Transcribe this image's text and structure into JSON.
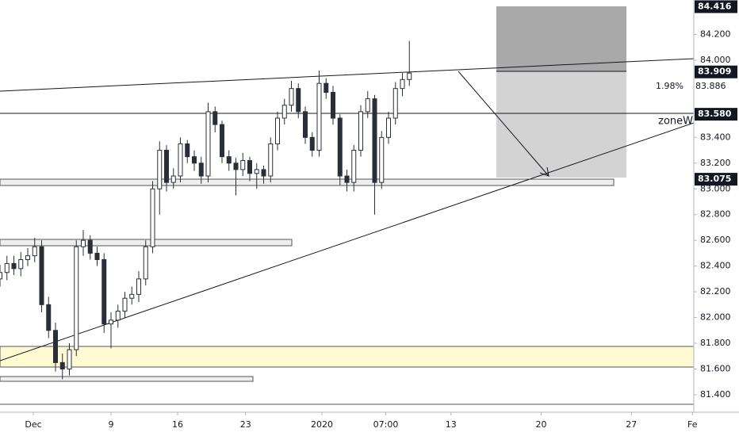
{
  "chart_data": {
    "type": "candlestick",
    "color": "#2a2e39",
    "x": [
      -2.4,
      -1.9,
      -1.4,
      -0.9,
      -0.4,
      0.1,
      0.6,
      1.1,
      1.6,
      2.1,
      2.6,
      3.1,
      3.6,
      4.1,
      4.6,
      5.1,
      5.6,
      6.1,
      6.6,
      7.1,
      7.6,
      8.1,
      8.6,
      9.1,
      9.6,
      10.1,
      10.6,
      11.1,
      11.6,
      12.1,
      12.6,
      13.1,
      13.6,
      14.1,
      14.6,
      15.1,
      15.6,
      16.1,
      16.6,
      17.1,
      17.6,
      18.1,
      18.6,
      19.1,
      19.6,
      20.1,
      20.6,
      21.1,
      21.6,
      22.1,
      22.6,
      23.1,
      23.6,
      24.1,
      24.6,
      25.1,
      25.6,
      26.1,
      26.6,
      27.1
    ],
    "open": [
      82.3,
      82.35,
      82.42,
      82.38,
      82.45,
      82.48,
      82.55,
      82.1,
      81.9,
      81.65,
      81.6,
      81.75,
      82.55,
      82.6,
      82.5,
      82.45,
      81.95,
      81.98,
      82.05,
      82.15,
      82.18,
      82.3,
      82.55,
      83.0,
      83.3,
      83.05,
      83.1,
      83.35,
      83.25,
      83.2,
      83.1,
      83.6,
      83.5,
      83.25,
      83.2,
      83.15,
      83.22,
      83.12,
      83.15,
      83.1,
      83.35,
      83.55,
      83.65,
      83.78,
      83.6,
      83.4,
      83.3,
      83.82,
      83.75,
      83.55,
      83.1,
      83.05,
      83.3,
      83.6,
      83.7,
      83.05,
      83.4,
      83.55,
      83.78,
      83.85
    ],
    "high": [
      82.41,
      82.48,
      82.48,
      82.51,
      82.54,
      82.62,
      82.6,
      82.16,
      81.96,
      81.72,
      81.8,
      82.6,
      82.68,
      82.64,
      82.55,
      82.5,
      82.04,
      82.1,
      82.2,
      82.24,
      82.36,
      82.6,
      83.06,
      83.37,
      83.34,
      83.16,
      83.4,
      83.38,
      83.3,
      83.25,
      83.67,
      83.64,
      83.53,
      83.3,
      83.24,
      83.28,
      83.25,
      83.2,
      83.18,
      83.4,
      83.6,
      83.7,
      83.84,
      83.82,
      83.64,
      83.44,
      83.92,
      83.86,
      83.8,
      83.58,
      83.15,
      83.34,
      83.65,
      83.76,
      83.73,
      83.45,
      83.6,
      83.83,
      83.9,
      84.15
    ],
    "low": [
      82.24,
      82.29,
      82.33,
      82.32,
      82.4,
      82.43,
      82.04,
      81.84,
      81.58,
      81.52,
      81.55,
      81.7,
      82.48,
      82.45,
      82.4,
      81.88,
      81.76,
      81.92,
      82.0,
      82.1,
      82.12,
      82.25,
      82.5,
      82.8,
      82.98,
      83.0,
      83.05,
      83.2,
      83.14,
      83.04,
      83.05,
      83.44,
      83.2,
      83.14,
      82.95,
      83.1,
      83.06,
      83.0,
      83.04,
      83.05,
      83.3,
      83.5,
      83.6,
      83.55,
      83.35,
      83.25,
      83.25,
      83.7,
      83.5,
      83.03,
      82.98,
      82.98,
      83.25,
      83.55,
      82.8,
      83.0,
      83.35,
      83.5,
      83.72,
      83.8
    ],
    "close": [
      82.35,
      82.42,
      82.38,
      82.45,
      82.48,
      82.55,
      82.1,
      81.9,
      81.65,
      81.6,
      81.75,
      82.55,
      82.6,
      82.5,
      82.45,
      81.95,
      81.98,
      82.05,
      82.15,
      82.18,
      82.3,
      82.55,
      83.0,
      83.3,
      83.05,
      83.1,
      83.35,
      83.25,
      83.2,
      83.1,
      83.6,
      83.5,
      83.25,
      83.2,
      83.15,
      83.22,
      83.12,
      83.15,
      83.1,
      83.35,
      83.55,
      83.65,
      83.78,
      83.6,
      83.4,
      83.3,
      83.82,
      83.75,
      83.55,
      83.1,
      83.05,
      83.3,
      83.6,
      83.7,
      83.05,
      83.4,
      83.55,
      83.78,
      83.85,
      83.9
    ],
    "xlim": [
      -2.4,
      47.6
    ],
    "xticks": [
      {
        "value": 0,
        "label": "Dec"
      },
      {
        "value": 5.6,
        "label": "9"
      },
      {
        "value": 10.4,
        "label": "16"
      },
      {
        "value": 15.3,
        "label": "23"
      },
      {
        "value": 20.8,
        "label": "2020"
      },
      {
        "value": 25.4,
        "label": "07:00"
      },
      {
        "value": 30.1,
        "label": "13"
      },
      {
        "value": 36.6,
        "label": "20"
      },
      {
        "value": 43.1,
        "label": "27"
      },
      {
        "value": 47.5,
        "label": "Fe"
      }
    ],
    "ylim": [
      81.264,
      84.468
    ],
    "yticks": [
      {
        "value": 81.4,
        "label": "81.400"
      },
      {
        "value": 81.6,
        "label": "81.600"
      },
      {
        "value": 81.8,
        "label": "81.800"
      },
      {
        "value": 82.0,
        "label": "82.000"
      },
      {
        "value": 82.2,
        "label": "82.200"
      },
      {
        "value": 82.4,
        "label": "82.400"
      },
      {
        "value": 82.6,
        "label": "82.600"
      },
      {
        "value": 82.8,
        "label": "82.800"
      },
      {
        "value": 83.0,
        "label": "83.000"
      },
      {
        "value": 83.2,
        "label": "83.200"
      },
      {
        "value": 83.4,
        "label": "83.400"
      },
      {
        "value": 84.0,
        "label": "84.000"
      },
      {
        "value": 84.2,
        "label": "84.200"
      }
    ],
    "price_labels": [
      {
        "value": 84.416,
        "label": "84.416"
      },
      {
        "value": 83.909,
        "label": "83.909"
      },
      {
        "value": 83.58,
        "label": "83.580"
      },
      {
        "value": 83.075,
        "label": "83.075"
      }
    ],
    "current_price": {
      "value": 83.886,
      "label": "83.886"
    },
    "annotations": [
      "1.98%",
      "zoneW"
    ]
  }
}
